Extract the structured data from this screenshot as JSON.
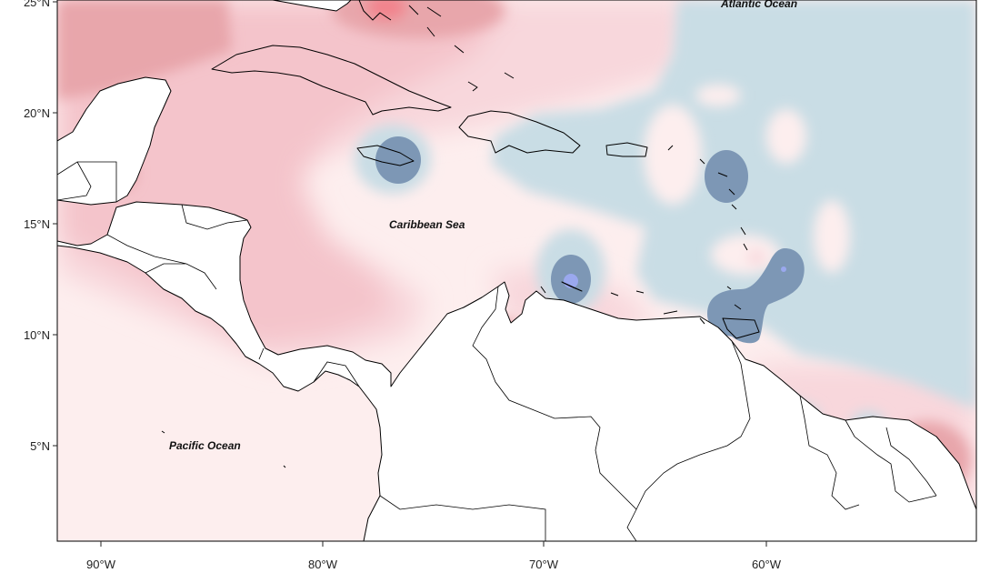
{
  "map": {
    "labels": {
      "atlantic": "Atlantic Ocean",
      "caribbean": "Caribbean Sea",
      "pacific": "Pacific Ocean"
    },
    "x_ticks": [
      {
        "lon": -90,
        "label": "90°W"
      },
      {
        "lon": -80,
        "label": "80°W"
      },
      {
        "lon": -70,
        "label": "70°W"
      },
      {
        "lon": -60,
        "label": "60°W"
      }
    ],
    "y_ticks": [
      {
        "lat": 25,
        "label": "25°N"
      },
      {
        "lat": 20,
        "label": "20°N"
      },
      {
        "lat": 15,
        "label": "15°N"
      },
      {
        "lat": 10,
        "label": "10°N"
      },
      {
        "lat": 5,
        "label": "5°N"
      }
    ],
    "colors": {
      "land": "#ffffff",
      "coast": "#000000",
      "neutral": "#fdeeee",
      "light_pink": "#f8d7dc",
      "pink": "#f4c4cb",
      "dark_pink": "#e8a6ab",
      "red": "#f2838c",
      "light_blue": "#c9dde5",
      "blue": "#7d97b5",
      "bright_blue": "#9aa8ee"
    }
  }
}
